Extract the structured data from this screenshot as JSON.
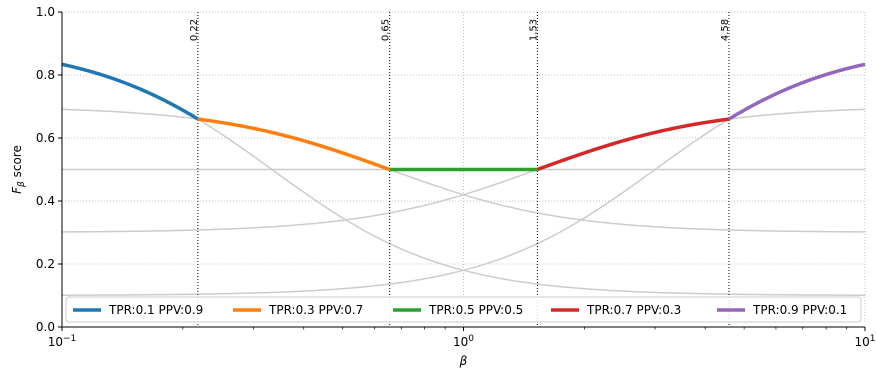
{
  "chart_data": {
    "type": "line",
    "title": "",
    "xlabel": "β",
    "ylabel": "F_β score",
    "xscale": "log",
    "xlim": [
      0.1,
      10
    ],
    "ylim": [
      0.0,
      1.0
    ],
    "grid": true,
    "x_ticks": [
      {
        "value": 0.1,
        "base": "10",
        "exp": "−1"
      },
      {
        "value": 1,
        "base": "10",
        "exp": "0"
      },
      {
        "value": 10,
        "base": "10",
        "exp": "1"
      }
    ],
    "y_ticks": [
      0.0,
      0.2,
      0.4,
      0.6,
      0.8,
      1.0
    ],
    "y_tick_labels": [
      "0.0",
      "0.2",
      "0.4",
      "0.6",
      "0.8",
      "1.0"
    ],
    "vlines": [
      {
        "x": 0.218,
        "label": "0.22"
      },
      {
        "x": 0.655,
        "label": "0.65"
      },
      {
        "x": 1.528,
        "label": "1.53"
      },
      {
        "x": 4.583,
        "label": "4.58"
      }
    ],
    "legend_position": "bottom",
    "series": [
      {
        "name": "TPR:0.1 PPV:0.9",
        "tpr": 0.1,
        "ppv": 0.9,
        "color": "#1f77b4",
        "x_range": [
          0.1,
          0.218
        ]
      },
      {
        "name": "TPR:0.3 PPV:0.7",
        "tpr": 0.3,
        "ppv": 0.7,
        "color": "#ff7f0e",
        "x_range": [
          0.218,
          0.655
        ]
      },
      {
        "name": "TPR:0.5 PPV:0.5",
        "tpr": 0.5,
        "ppv": 0.5,
        "color": "#2ca02c",
        "x_range": [
          0.655,
          1.528
        ]
      },
      {
        "name": "TPR:0.7 PPV:0.3",
        "tpr": 0.7,
        "ppv": 0.3,
        "color": "#d62728",
        "x_range": [
          1.528,
          4.583
        ]
      },
      {
        "name": "TPR:0.9 PPV:0.1",
        "tpr": 0.9,
        "ppv": 0.1,
        "color": "#9467bd",
        "x_range": [
          4.583,
          10
        ]
      }
    ],
    "background_line_color": "#cccccc"
  }
}
